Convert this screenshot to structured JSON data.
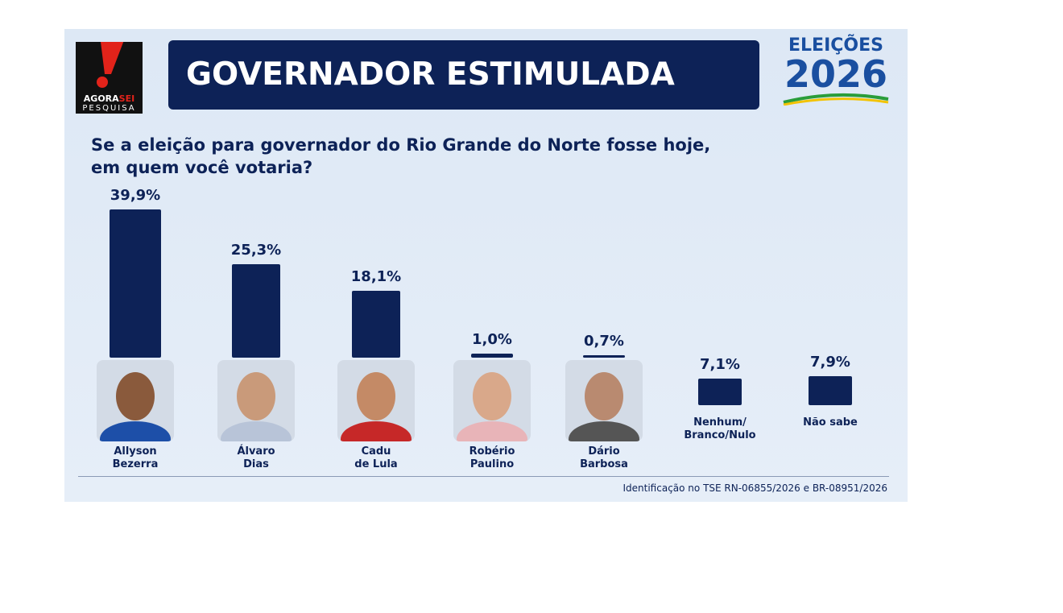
{
  "logo": {
    "name_parts": [
      "AGORA",
      "SEI"
    ],
    "subtitle": "PESQUISA"
  },
  "badge": {
    "line1": "ELEIÇÕES",
    "line2": "2026"
  },
  "chart_data": {
    "type": "bar",
    "title": "GOVERNADOR ESTIMULADA",
    "subtitle": "Se a eleição para governador do Rio Grande do Norte fosse hoje,\nem quem você votaria?",
    "categories": [
      "Allyson\nBezerra",
      "Álvaro\nDias",
      "Cadu\nde Lula",
      "Robério\nPaulino",
      "Dário\nBarbosa",
      "Nenhum/\nBranco/Nulo",
      "Não sabe"
    ],
    "values": [
      39.9,
      25.3,
      18.1,
      1.0,
      0.7,
      7.1,
      7.9
    ],
    "value_labels": [
      "39,9%",
      "25,3%",
      "18,1%",
      "1,0%",
      "0,7%",
      "7,1%",
      "7,9%"
    ],
    "color": "#0d2257"
  },
  "note": "Identificação no TSE RN-06855/2026 e BR-08951/2026"
}
